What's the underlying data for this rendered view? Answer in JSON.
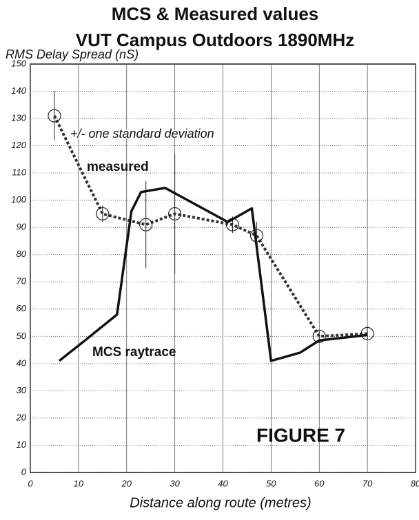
{
  "chart_data": {
    "type": "line",
    "title": [
      "MCS & Measured values",
      "VUT Campus Outdoors 1890MHz"
    ],
    "y_label": "RMS Delay Spread (nS)",
    "x_label": "Distance along route (metres)",
    "annotations": [
      "+/- one standard deviation",
      "measured",
      "MCS raytrace",
      "FIGURE 7"
    ],
    "xlim": [
      0,
      80
    ],
    "xticks": [
      0,
      10,
      20,
      30,
      40,
      50,
      60,
      70,
      80
    ],
    "ylim": [
      0,
      150
    ],
    "yticks": [
      0,
      10,
      20,
      30,
      40,
      50,
      60,
      70,
      80,
      90,
      100,
      110,
      120,
      130,
      140,
      150
    ],
    "grid": true,
    "series": [
      {
        "name": "measured",
        "color": "#333333",
        "style": "dotted",
        "x": [
          5,
          15,
          24,
          30,
          42,
          47,
          60,
          70
        ],
        "values": [
          131,
          95,
          91,
          95,
          91,
          87,
          50,
          51
        ],
        "errors": [
          9,
          3,
          16,
          22,
          3,
          5,
          2,
          2
        ]
      },
      {
        "name": "MCS raytrace",
        "color": "#111111",
        "style": "solid",
        "x": [
          6,
          11,
          18,
          21,
          23,
          28,
          41,
          46,
          50,
          56,
          60,
          70
        ],
        "values": [
          41,
          48,
          58,
          96,
          103,
          104.5,
          92,
          97,
          41,
          44,
          48.5,
          50.5
        ]
      }
    ]
  }
}
